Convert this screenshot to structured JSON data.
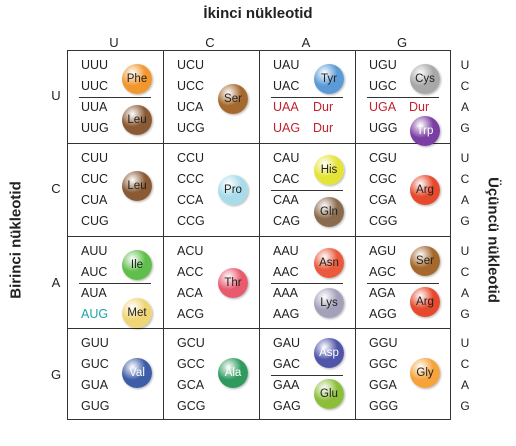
{
  "titles": {
    "top": "İkinci nükleotid",
    "left": "Birinci nükleotid",
    "right": "Üçüncü nükleotid"
  },
  "second_bases": [
    "U",
    "C",
    "A",
    "G"
  ],
  "first_bases": [
    "U",
    "C",
    "A",
    "G"
  ],
  "third_bases": [
    "U",
    "C",
    "A",
    "G"
  ],
  "stop_label": "Dur",
  "cells": [
    [
      {
        "codons": [
          "UUU",
          "UUC",
          "UUA",
          "UUG"
        ],
        "amino": [
          {
            "label": "Phe",
            "color": "#f2962e"
          },
          {
            "label": "Leu",
            "color": "#8a5a34"
          }
        ]
      },
      {
        "codons": [
          "UCU",
          "UCC",
          "UCA",
          "UCG"
        ],
        "amino": [
          {
            "label": "Ser",
            "color": "#a5692e"
          }
        ]
      },
      {
        "codons": [
          "UAU",
          "UAC",
          "UAA",
          "UAG"
        ],
        "amino": [
          {
            "label": "Tyr",
            "color": "#5a9ad6"
          }
        ]
      },
      {
        "codons": [
          "UGU",
          "UGC",
          "UGA",
          "UGG"
        ],
        "amino": [
          {
            "label": "Cys",
            "color": "#a8a8a8"
          },
          {
            "label": "Trp",
            "color": "#7b3fa3"
          }
        ]
      }
    ],
    [
      {
        "codons": [
          "CUU",
          "CUC",
          "CUA",
          "CUG"
        ],
        "amino": [
          {
            "label": "Leu",
            "color": "#8a5a34"
          }
        ]
      },
      {
        "codons": [
          "CCU",
          "CCC",
          "CCA",
          "CCG"
        ],
        "amino": [
          {
            "label": "Pro",
            "color": "#a8dcea"
          }
        ]
      },
      {
        "codons": [
          "CAU",
          "CAC",
          "CAA",
          "CAG"
        ],
        "amino": [
          {
            "label": "His",
            "color": "#e3e436"
          },
          {
            "label": "Gln",
            "color": "#8b6b4e"
          }
        ]
      },
      {
        "codons": [
          "CGU",
          "CGC",
          "CGA",
          "CGG"
        ],
        "amino": [
          {
            "label": "Arg",
            "color": "#e6492c"
          }
        ]
      }
    ],
    [
      {
        "codons": [
          "AUU",
          "AUC",
          "AUA",
          "AUG"
        ],
        "amino": [
          {
            "label": "Ile",
            "color": "#5fbf4a"
          },
          {
            "label": "Met",
            "color": "#f0d575"
          }
        ]
      },
      {
        "codons": [
          "ACU",
          "ACC",
          "ACA",
          "ACG"
        ],
        "amino": [
          {
            "label": "Thr",
            "color": "#e85a6e"
          }
        ]
      },
      {
        "codons": [
          "AAU",
          "AAC",
          "AAA",
          "AAG"
        ],
        "amino": [
          {
            "label": "Asn",
            "color": "#ea5a3c"
          },
          {
            "label": "Lys",
            "color": "#a3a0ba"
          }
        ]
      },
      {
        "codons": [
          "AGU",
          "AGC",
          "AGA",
          "AGG"
        ],
        "amino": [
          {
            "label": "Ser",
            "color": "#a5692e"
          },
          {
            "label": "Arg",
            "color": "#e6492c"
          }
        ]
      }
    ],
    [
      {
        "codons": [
          "GUU",
          "GUC",
          "GUA",
          "GUG"
        ],
        "amino": [
          {
            "label": "Val",
            "color": "#3d5da8"
          }
        ]
      },
      {
        "codons": [
          "GCU",
          "GCC",
          "GCA",
          "GCG"
        ],
        "amino": [
          {
            "label": "Ala",
            "color": "#2e9a5e"
          }
        ]
      },
      {
        "codons": [
          "GAU",
          "GAC",
          "GAA",
          "GAG"
        ],
        "amino": [
          {
            "label": "Asp",
            "color": "#4f55a8"
          },
          {
            "label": "Glu",
            "color": "#8cbe3a"
          }
        ]
      },
      {
        "codons": [
          "GGU",
          "GGC",
          "GGA",
          "GGG"
        ],
        "amino": [
          {
            "label": "Gly",
            "color": "#f5a33a"
          }
        ]
      }
    ]
  ]
}
